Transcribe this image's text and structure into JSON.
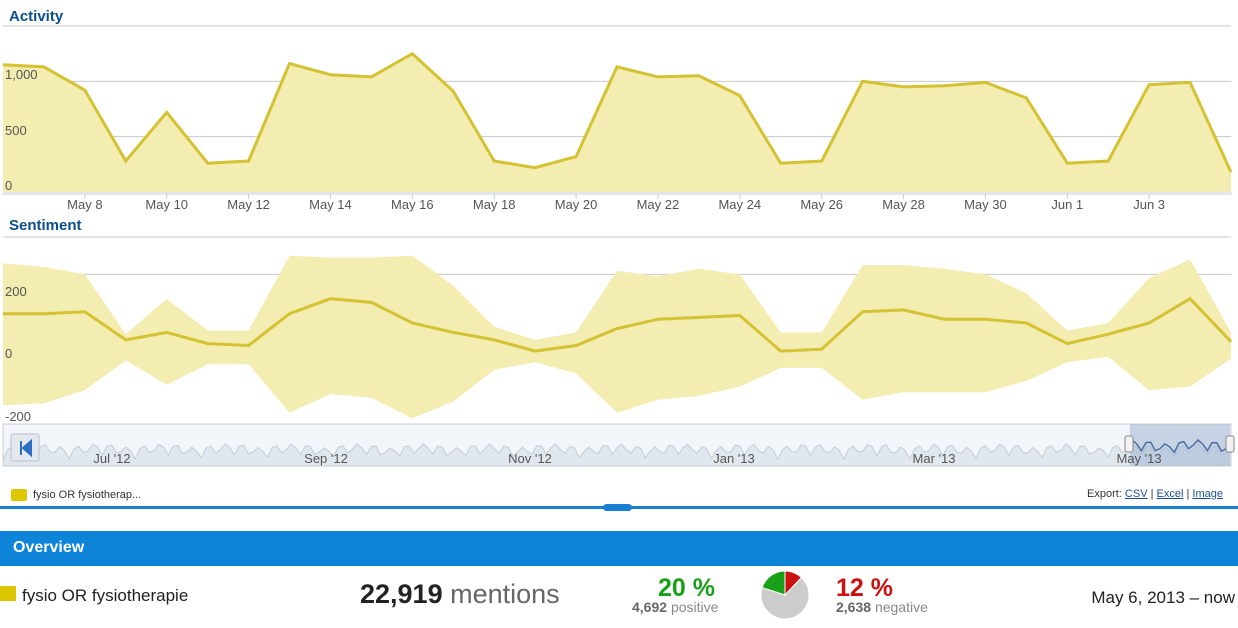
{
  "chart_data": [
    {
      "type": "area",
      "title": "Activity",
      "ylim": [
        0,
        1500
      ],
      "yticks": [
        0,
        500,
        1000
      ],
      "ytick_labels": [
        "0",
        "500",
        "1,000"
      ],
      "x_dates": [
        "May 6",
        "May 7",
        "May 8",
        "May 9",
        "May 10",
        "May 11",
        "May 12",
        "May 13",
        "May 14",
        "May 15",
        "May 16",
        "May 17",
        "May 18",
        "May 19",
        "May 20",
        "May 21",
        "May 22",
        "May 23",
        "May 24",
        "May 25",
        "May 26",
        "May 27",
        "May 28",
        "May 29",
        "May 30",
        "May 31",
        "Jun 1",
        "Jun 2",
        "Jun 3",
        "Jun 4",
        "Jun 5"
      ],
      "values": [
        1150,
        1130,
        920,
        280,
        720,
        260,
        280,
        1160,
        1060,
        1040,
        1250,
        910,
        280,
        220,
        320,
        1130,
        1040,
        1050,
        870,
        260,
        280,
        1000,
        950,
        960,
        990,
        850,
        260,
        280,
        970,
        990,
        180
      ],
      "xtick_labels": [
        "May 8",
        "May 10",
        "May 12",
        "May 14",
        "May 16",
        "May 18",
        "May 20",
        "May 22",
        "May 24",
        "May 26",
        "May 28",
        "May 30",
        "Jun 1",
        "Jun 3"
      ]
    },
    {
      "type": "area",
      "title": "Sentiment",
      "ylim": [
        -200,
        300
      ],
      "yticks": [
        200,
        0,
        -200
      ],
      "ytick_labels": [
        "200",
        "0",
        "-200"
      ],
      "values": [
        95,
        95,
        100,
        25,
        45,
        15,
        10,
        95,
        135,
        125,
        70,
        45,
        25,
        -5,
        10,
        55,
        80,
        85,
        90,
        -5,
        0,
        100,
        105,
        80,
        80,
        70,
        15,
        40,
        70,
        135,
        20
      ],
      "upper": [
        230,
        220,
        200,
        40,
        135,
        50,
        50,
        250,
        245,
        245,
        250,
        170,
        60,
        25,
        45,
        210,
        195,
        215,
        200,
        45,
        45,
        225,
        225,
        215,
        200,
        150,
        50,
        70,
        190,
        240,
        45
      ],
      "lower": [
        -150,
        -145,
        -110,
        -30,
        -95,
        -40,
        -40,
        -170,
        -120,
        -130,
        -185,
        -140,
        -55,
        -35,
        -65,
        -170,
        -135,
        -125,
        -100,
        -50,
        -50,
        -135,
        -115,
        -115,
        -115,
        -85,
        -35,
        -20,
        -110,
        -100,
        -25
      ]
    }
  ],
  "navigator": {
    "labels": [
      "Jul '12",
      "Sep '12",
      "Nov '12",
      "Jan '13",
      "Mar '13",
      "May '13"
    ]
  },
  "legend": {
    "label": "fysio OR fysiotherap..."
  },
  "export": {
    "label": "Export:",
    "csv": "CSV",
    "sep": "|",
    "excel": "Excel",
    "image": "Image"
  },
  "overview": {
    "title": "Overview",
    "query": "fysio OR fysiotherapie",
    "mentions_count": "22,919",
    "mentions_label": "mentions",
    "positive_pct": "20 %",
    "positive_count": "4,692",
    "positive_label": "positive",
    "negative_pct": "12 %",
    "negative_count": "2,638",
    "negative_label": "negative",
    "date_range": "May 6, 2013 – now",
    "pie": {
      "positive": 20,
      "negative": 12
    }
  },
  "colors": {
    "series_line": "#d4c232",
    "series_fill": "#f3edb2",
    "positive": "#19a019",
    "negative": "#cc1111",
    "neutral": "#cccccc",
    "accent": "#0d84d8"
  }
}
